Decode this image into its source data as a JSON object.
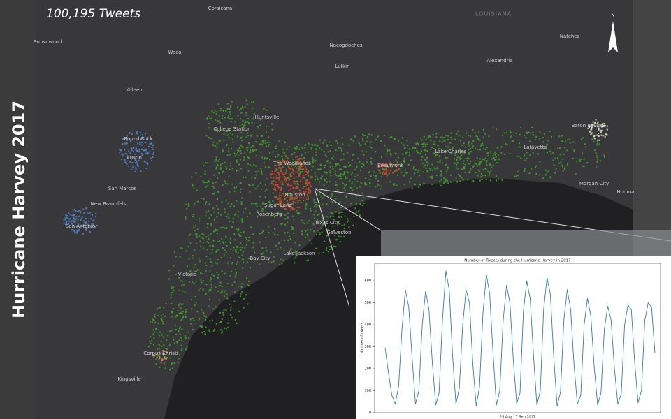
{
  "title": "Hurricane Harvey 2017",
  "count_label": "100,195 Tweets",
  "map": {
    "north": "N",
    "state": "LOUISIANA",
    "places": [
      "Corsicana",
      "Brownwood",
      "Waco",
      "Nacogdoches",
      "Lufkin",
      "Alexandria",
      "Natchez",
      "Killeen",
      "Huntsville",
      "College Station",
      "Round Rock",
      "Austin",
      "San Marcos",
      "New Braunfels",
      "San Antonio",
      "The Woodlands",
      "Houston",
      "Sugar Land",
      "Rosenberg",
      "Beaumont",
      "Lake Charles",
      "Lafayette",
      "Baton Rouge",
      "Morgan City",
      "Houma",
      "Texas City",
      "Galveston",
      "Bay City",
      "Lake Jackson",
      "Victoria",
      "Corpus Christi",
      "Kingsville"
    ]
  },
  "chart_data": {
    "type": "line",
    "title": "Number of Tweets during the Hurricane Harvey in 2017",
    "xlabel": "25 Aug - 7 Sep 2017",
    "ylabel": "Number of tweets",
    "ylim": [
      0,
      680
    ],
    "yticks": [
      0,
      100,
      200,
      300,
      400,
      500,
      600
    ],
    "color": "#3a7bb0",
    "values": [
      295,
      180,
      80,
      40,
      120,
      380,
      560,
      480,
      250,
      40,
      100,
      400,
      555,
      470,
      230,
      35,
      90,
      420,
      645,
      560,
      260,
      40,
      110,
      400,
      560,
      500,
      220,
      30,
      120,
      450,
      630,
      540,
      270,
      35,
      100,
      420,
      580,
      500,
      240,
      40,
      90,
      460,
      600,
      520,
      260,
      35,
      100,
      470,
      615,
      540,
      250,
      30,
      95,
      420,
      560,
      470,
      220,
      40,
      80,
      400,
      520,
      440,
      210,
      35,
      90,
      380,
      485,
      420,
      200,
      40,
      85,
      400,
      490,
      470,
      230,
      45,
      100,
      420,
      500,
      480,
      270
    ]
  }
}
